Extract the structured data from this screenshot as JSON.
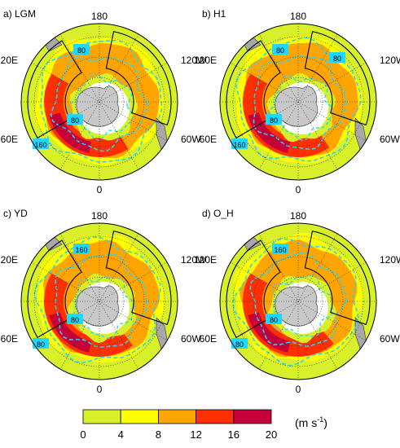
{
  "panels": [
    {
      "id": "lgm",
      "label": "a) LGM",
      "contour_labels": [
        "80",
        "80",
        "160"
      ]
    },
    {
      "id": "h1",
      "label": "b) H1",
      "contour_labels": [
        "80",
        "80",
        "160",
        "80"
      ]
    },
    {
      "id": "yd",
      "label": "c) YD",
      "contour_labels": [
        "160",
        "80",
        "80"
      ]
    },
    {
      "id": "oh",
      "label": "d) O_H",
      "contour_labels": [
        "160",
        "80",
        "80"
      ]
    }
  ],
  "lon_labels": {
    "top": "180",
    "left_upper": "120E",
    "right_upper": "120W",
    "left_lower": "60E",
    "right_lower": "60W",
    "bottom": "0"
  },
  "colorbar": {
    "unit": "(m s",
    "unit_exp": "-1",
    "unit_close": ")",
    "ticks": [
      "0",
      "4",
      "8",
      "12",
      "16",
      "20"
    ],
    "colors": [
      "#d8f02a",
      "#ffff00",
      "#ffa500",
      "#ff3000",
      "#c8003a"
    ]
  },
  "palette": {
    "low": "#d8f02a",
    "land": "#a8a8a8",
    "antarctica": "#c8c8c8",
    "contour": "#20d8ff"
  }
}
